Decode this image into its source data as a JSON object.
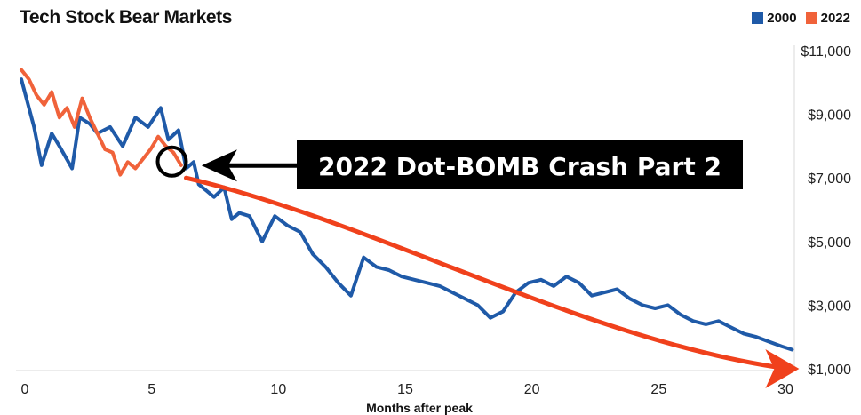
{
  "chart_data": {
    "type": "line",
    "title": "Tech Stock Bear Markets",
    "xlabel": "Months after peak",
    "ylabel": "",
    "xlim": [
      0,
      30
    ],
    "ylim": [
      1000,
      11000
    ],
    "x_ticks": [
      0,
      5,
      10,
      15,
      20,
      25,
      30
    ],
    "y_ticks": [
      1000,
      3000,
      5000,
      7000,
      9000,
      11000
    ],
    "y_tick_labels": [
      "$1,000",
      "$3,000",
      "$5,000",
      "$7,000",
      "$9,000",
      "$11,000"
    ],
    "legend": [
      {
        "name": "2000",
        "color": "#1f5aa8"
      },
      {
        "name": "2022",
        "color": "#f0623a"
      }
    ],
    "series": [
      {
        "name": "2000",
        "color": "#1f5aa8",
        "x": [
          0,
          0.5,
          0.8,
          1.2,
          1.5,
          2.0,
          2.3,
          2.7,
          3.0,
          3.5,
          4.0,
          4.5,
          5.0,
          5.5,
          5.8,
          6.2,
          6.5,
          6.8,
          7.0,
          7.3,
          7.6,
          8.0,
          8.3,
          8.6,
          9.0,
          9.5,
          10.0,
          10.5,
          11.0,
          11.5,
          12.0,
          12.5,
          13.0,
          13.5,
          14.0,
          14.5,
          15.0,
          15.5,
          16.0,
          16.5,
          17.0,
          17.5,
          18.0,
          18.5,
          19.0,
          19.5,
          20.0,
          20.5,
          21.0,
          21.5,
          22.0,
          22.5,
          23.0,
          23.5,
          24.0,
          24.5,
          25.0,
          25.5,
          26.0,
          26.5,
          27.0,
          27.5,
          28.0,
          28.5,
          29.0,
          29.5,
          30.0,
          30.4
        ],
        "values": [
          10100,
          8600,
          7400,
          8400,
          8000,
          7300,
          8900,
          8700,
          8400,
          8600,
          8000,
          8900,
          8600,
          9200,
          8200,
          8500,
          7300,
          7500,
          6800,
          6600,
          6400,
          6700,
          5700,
          5900,
          5800,
          5000,
          5800,
          5500,
          5300,
          4600,
          4200,
          3700,
          3300,
          4500,
          4200,
          4100,
          3900,
          3800,
          3700,
          3600,
          3400,
          3200,
          3000,
          2600,
          2800,
          3400,
          3700,
          3800,
          3600,
          3900,
          3700,
          3300,
          3400,
          3500,
          3200,
          3000,
          2900,
          3000,
          2700,
          2500,
          2400,
          2500,
          2300,
          2100,
          2000,
          1850,
          1700,
          1600
        ]
      },
      {
        "name": "2022",
        "color": "#f0623a",
        "x": [
          0,
          0.3,
          0.6,
          0.9,
          1.2,
          1.5,
          1.8,
          2.1,
          2.4,
          2.7,
          3.0,
          3.3,
          3.6,
          3.9,
          4.2,
          4.5,
          4.8,
          5.1,
          5.4,
          5.7,
          6.0,
          6.3
        ],
        "values": [
          10400,
          10100,
          9600,
          9300,
          9700,
          8900,
          9200,
          8600,
          9500,
          8900,
          8400,
          7900,
          7800,
          7100,
          7500,
          7300,
          7600,
          7900,
          8300,
          8000,
          7800,
          7400
        ]
      }
    ],
    "annotations": [
      {
        "text": "2022 Dot-BOMB Crash Part 2",
        "style": "black-box"
      },
      {
        "type": "trend-arrow",
        "color": "#f0411c",
        "from": [
          6.5,
          7000
        ],
        "to": [
          30.4,
          1000
        ]
      },
      {
        "type": "circle",
        "at": [
          5.8,
          7600
        ]
      },
      {
        "type": "pointer-arrow",
        "to": [
          6.9,
          7500
        ]
      }
    ]
  }
}
